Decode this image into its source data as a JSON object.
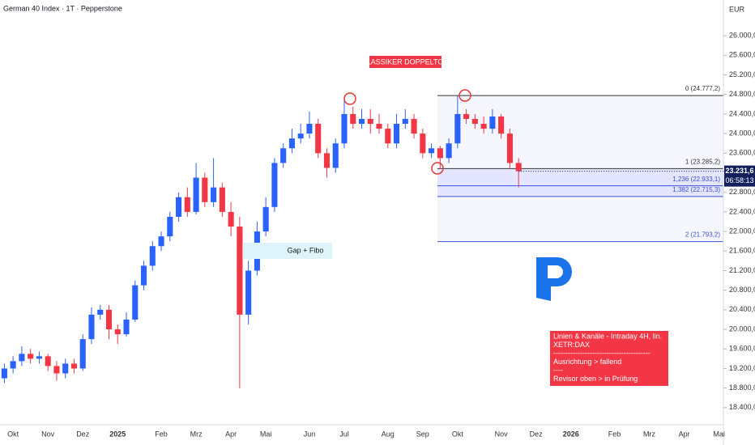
{
  "chart_data": {
    "type": "candlestick",
    "title": "German 40 Index · 1T · Pepperstone",
    "currency": "EUR",
    "categories": [
      null,
      "Okt",
      null,
      null,
      null,
      "Nov",
      null,
      null,
      null,
      "Dez",
      null,
      null,
      null,
      "2025",
      null,
      null,
      null,
      null,
      "Feb",
      null,
      null,
      null,
      "Mrz",
      null,
      null,
      null,
      "Apr",
      null,
      null,
      null,
      "Mai",
      null,
      null,
      null,
      null,
      "Jun",
      null,
      null,
      null,
      "Jul",
      null,
      null,
      null,
      null,
      "Aug",
      null,
      null,
      null,
      "Sep",
      null,
      null,
      null,
      "Okt",
      null,
      null,
      null,
      null,
      "Nov",
      null,
      null,
      null,
      "Dez",
      null,
      null,
      null,
      "2026",
      null,
      null,
      null,
      null,
      "Feb",
      null,
      null,
      null,
      "Mrz",
      null,
      null,
      null,
      "Apr",
      null,
      null,
      null,
      "Mai"
    ],
    "open": [
      19000,
      19200,
      19350,
      19500,
      19400,
      19450,
      19250,
      19100,
      19300,
      19200,
      19800,
      20300,
      20400,
      20000,
      19900,
      20200,
      20900,
      21300,
      21700,
      21900,
      22300,
      22700,
      22400,
      23100,
      22600,
      22900,
      22400,
      22100,
      20300,
      21200,
      22000,
      22500,
      23400,
      23700,
      23900,
      24000,
      24200,
      23600,
      23300,
      23800,
      24400,
      24200,
      24300,
      24200,
      24100,
      23800,
      24200,
      24300,
      24000,
      23600,
      23700,
      23500,
      23800,
      24400,
      24300,
      24200,
      24100,
      24350,
      24000,
      23400,
      null,
      null,
      null,
      null,
      null,
      null,
      null,
      null,
      null,
      null,
      null,
      null,
      null,
      null,
      null,
      null,
      null,
      null,
      null,
      null,
      null,
      null,
      null
    ],
    "high": [
      19300,
      19450,
      19650,
      19600,
      19550,
      19500,
      19350,
      19400,
      19400,
      19900,
      20450,
      20500,
      20500,
      20100,
      20350,
      21000,
      21400,
      21800,
      22000,
      22400,
      22800,
      22900,
      23400,
      23200,
      23500,
      23000,
      22600,
      22300,
      21400,
      22200,
      22700,
      23500,
      23800,
      24100,
      24200,
      24450,
      24300,
      23700,
      23900,
      24730,
      24550,
      24500,
      24500,
      24400,
      24200,
      24400,
      24500,
      24400,
      24100,
      23800,
      23750,
      23900,
      24770,
      24500,
      24400,
      24350,
      24500,
      24400,
      24100,
      23500,
      null,
      null,
      null,
      null,
      null,
      null,
      null,
      null,
      null,
      null,
      null,
      null,
      null,
      null,
      null,
      null,
      null,
      null,
      null,
      null,
      null,
      null,
      null
    ],
    "low": [
      18900,
      19100,
      19250,
      19300,
      19300,
      19150,
      18950,
      19000,
      19100,
      19150,
      19700,
      20200,
      19800,
      19700,
      19850,
      20150,
      20800,
      21200,
      21600,
      21800,
      22200,
      22300,
      22350,
      22500,
      22500,
      22300,
      21900,
      18800,
      20100,
      21100,
      21900,
      22400,
      23300,
      23600,
      23800,
      23900,
      23500,
      23100,
      23200,
      23700,
      24100,
      24100,
      24000,
      24000,
      23700,
      23700,
      24100,
      23900,
      23500,
      23500,
      23280,
      23400,
      23700,
      24200,
      24100,
      24000,
      24000,
      23900,
      23300,
      22900,
      null,
      null,
      null,
      null,
      null,
      null,
      null,
      null,
      null,
      null,
      null,
      null,
      null,
      null,
      null,
      null,
      null,
      null,
      null,
      null,
      null,
      null,
      null
    ],
    "close": [
      19200,
      19350,
      19500,
      19400,
      19450,
      19250,
      19100,
      19300,
      19200,
      19800,
      20300,
      20400,
      20000,
      19900,
      20200,
      20900,
      21300,
      21700,
      21900,
      22300,
      22700,
      22400,
      23100,
      22600,
      22900,
      22400,
      22100,
      20300,
      21200,
      22000,
      22500,
      23400,
      23700,
      23900,
      24000,
      24200,
      23600,
      23300,
      23800,
      24400,
      24200,
      24300,
      24200,
      24100,
      23800,
      24200,
      24300,
      24000,
      23600,
      23700,
      23500,
      23800,
      24400,
      24300,
      24200,
      24100,
      24350,
      24000,
      23400,
      23231.6,
      null,
      null,
      null,
      null,
      null,
      null,
      null,
      null,
      null,
      null,
      null,
      null,
      null,
      null,
      null,
      null,
      null,
      null,
      null,
      null,
      null,
      null,
      null
    ],
    "up_color": "#2962ff",
    "down_color": "#f23645",
    "ylim": [
      18050,
      26730
    ],
    "yticks": [
      {
        "value": 18400,
        "label": "18.400,0"
      },
      {
        "value": 18800,
        "label": "18.800,0"
      },
      {
        "value": 19200,
        "label": "19.200,0"
      },
      {
        "value": 19600,
        "label": "19.600,0"
      },
      {
        "value": 20000,
        "label": "20.000,0"
      },
      {
        "value": 20400,
        "label": "20.400,0"
      },
      {
        "value": 20800,
        "label": "20.800,0"
      },
      {
        "value": 21200,
        "label": "21.200,0"
      },
      {
        "value": 21600,
        "label": "21.600,0"
      },
      {
        "value": 22000,
        "label": "22.000,0"
      },
      {
        "value": 22400,
        "label": "22.400,0"
      },
      {
        "value": 22800,
        "label": "22.800,0"
      },
      {
        "value": 23600,
        "label": "23.600,0"
      },
      {
        "value": 24000,
        "label": "24.000,0"
      },
      {
        "value": 24400,
        "label": "24.400,0"
      },
      {
        "value": 24800,
        "label": "24.800,0"
      },
      {
        "value": 25200,
        "label": "25.200,0"
      },
      {
        "value": 25600,
        "label": "25.600,0"
      },
      {
        "value": 26000,
        "label": "26.000,0"
      }
    ],
    "last_price": {
      "value": 23231.6,
      "label": "23.231,6"
    },
    "countdown": "06:58:13",
    "fib_levels": [
      {
        "value": 24777.2,
        "label": "0 (24.777,2)"
      },
      {
        "value": 23285.2,
        "label": "1 (23.285,2)"
      },
      {
        "value": 22933.1,
        "label": "1,236 (22.933,1)"
      },
      {
        "value": 22715.3,
        "label": "1,382 (22.715,3)"
      },
      {
        "value": 21793.2,
        "label": "2 (21.793,2)"
      }
    ],
    "annotations": {
      "pattern": "KLASSIKER DOPPELTOP",
      "gap": "Gap + Fibo",
      "note": [
        "Linien & Kanäle - Intraday 4H, lin.",
        "XETR:DAX",
        "----------------------------------------",
        "Ausrichtung > fallend",
        "----",
        "Revisor oben > in Prüfung"
      ]
    }
  }
}
